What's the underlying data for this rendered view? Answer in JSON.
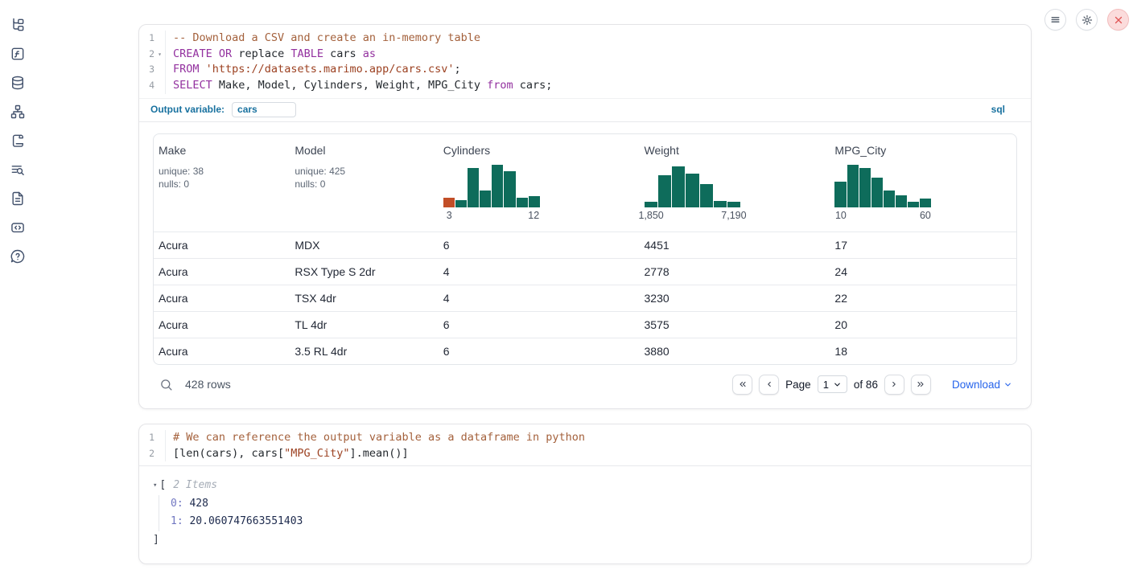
{
  "colors": {
    "hist_green": "#0e6c5b",
    "hist_orange": "#c24e27",
    "accent_blue": "#18719f",
    "link_blue": "#2563eb",
    "keyword_purple": "#93319f",
    "comment_brown": "#a4613c",
    "string_red": "#9c4121"
  },
  "sidebar": {
    "items": [
      "file-tree",
      "variables",
      "datasources",
      "dependency-graph",
      "scratchpad",
      "logs-search",
      "documentation",
      "snippets",
      "help"
    ]
  },
  "topbar": {
    "buttons": [
      "menu",
      "settings",
      "shutdown"
    ]
  },
  "sql_cell": {
    "lines": [
      {
        "num": "1",
        "tokens": [
          {
            "t": "-- Download a CSV and create an in-memory table",
            "c": "comment"
          }
        ]
      },
      {
        "num": "2",
        "fold": true,
        "tokens": [
          {
            "t": "CREATE",
            "c": "kw"
          },
          {
            "t": " "
          },
          {
            "t": "OR",
            "c": "kw"
          },
          {
            "t": " replace "
          },
          {
            "t": "TABLE",
            "c": "kw"
          },
          {
            "t": " cars "
          },
          {
            "t": "as",
            "c": "kw"
          }
        ]
      },
      {
        "num": "3",
        "tokens": [
          {
            "t": "FROM",
            "c": "kw"
          },
          {
            "t": " "
          },
          {
            "t": "'https://datasets.marimo.app/cars.csv'",
            "c": "str"
          },
          {
            "t": ";"
          }
        ]
      },
      {
        "num": "4",
        "tokens": [
          {
            "t": "SELECT",
            "c": "kw"
          },
          {
            "t": " Make, Model, Cylinders, Weight, MPG_City "
          },
          {
            "t": "from",
            "c": "kw"
          },
          {
            "t": " cars;"
          }
        ]
      }
    ],
    "output_variable_label": "Output variable:",
    "output_variable_value": "cars",
    "language_badge": "sql"
  },
  "table": {
    "columns": [
      {
        "name": "Make",
        "meta": [
          "unique: 38",
          "nulls: 0"
        ]
      },
      {
        "name": "Model",
        "meta": [
          "unique: 425",
          "nulls: 0"
        ]
      },
      {
        "name": "Cylinders",
        "histogram": {
          "bars": [
            22,
            16,
            92,
            40,
            100,
            85,
            22,
            27
          ],
          "first_bar_color": "orange",
          "min_label": "3",
          "max_label": "12"
        }
      },
      {
        "name": "Weight",
        "histogram": {
          "bars": [
            12,
            75,
            95,
            78,
            55,
            15,
            12
          ],
          "min_label": "1,850",
          "max_label": "7,190"
        }
      },
      {
        "name": "MPG_City",
        "histogram": {
          "bars": [
            60,
            100,
            93,
            70,
            40,
            28,
            12,
            20
          ],
          "min_label": "10",
          "max_label": "60"
        }
      }
    ],
    "rows": [
      [
        "Acura",
        "MDX",
        "6",
        "4451",
        "17"
      ],
      [
        "Acura",
        "RSX Type S 2dr",
        "4",
        "2778",
        "24"
      ],
      [
        "Acura",
        "TSX 4dr",
        "4",
        "3230",
        "22"
      ],
      [
        "Acura",
        "TL 4dr",
        "6",
        "3575",
        "20"
      ],
      [
        "Acura",
        "3.5 RL 4dr",
        "6",
        "3880",
        "18"
      ]
    ],
    "footer": {
      "row_count": "428 rows",
      "page_label": "Page",
      "page_value": "1",
      "of_label": "of 86",
      "download_label": "Download"
    }
  },
  "python_cell": {
    "lines": [
      {
        "num": "1",
        "tokens": [
          {
            "t": "# We can reference the output variable as a dataframe in python",
            "c": "comment"
          }
        ]
      },
      {
        "num": "2",
        "tokens": [
          {
            "t": "[len(cars), cars["
          },
          {
            "t": "\"MPG_City\"",
            "c": "str"
          },
          {
            "t": "].mean()]"
          }
        ]
      }
    ]
  },
  "python_output": {
    "open_bracket": "[",
    "items_label": "2 Items",
    "entries": [
      {
        "key": "0:",
        "value": "428"
      },
      {
        "key": "1:",
        "value": "20.060747663551403"
      }
    ],
    "close_bracket": "]"
  }
}
